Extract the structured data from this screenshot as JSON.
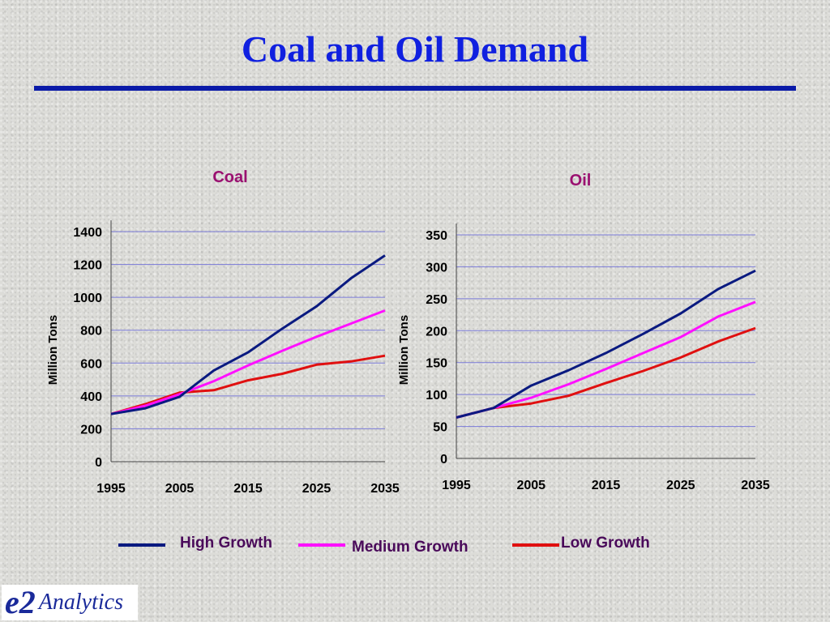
{
  "slide": {
    "title": "Coal and Oil Demand"
  },
  "colors": {
    "high": "#0a1a80",
    "medium": "#ff10ff",
    "low": "#e01010",
    "subtitle": "#9a1070",
    "grid": "#7a7ad8"
  },
  "chart_data": [
    {
      "type": "line",
      "title": "Coal",
      "ylabel": "Million Tons",
      "xlabel": "",
      "ylim": [
        0,
        1400
      ],
      "yticks": [
        0,
        200,
        400,
        600,
        800,
        1000,
        1200,
        1400
      ],
      "xlim": [
        1995,
        2035
      ],
      "xticks": [
        1995,
        2005,
        2015,
        2025,
        2035
      ],
      "x": [
        1995,
        2000,
        2005,
        2010,
        2015,
        2020,
        2025,
        2030,
        2035
      ],
      "series": [
        {
          "name": "High Growth",
          "color_key": "high",
          "values": [
            290,
            325,
            395,
            555,
            665,
            810,
            945,
            1115,
            1255
          ]
        },
        {
          "name": "Medium Growth",
          "color_key": "medium",
          "values": [
            290,
            340,
            410,
            490,
            585,
            675,
            760,
            840,
            920
          ]
        },
        {
          "name": "Low Growth",
          "color_key": "low",
          "values": [
            290,
            350,
            420,
            435,
            495,
            535,
            590,
            610,
            645
          ]
        }
      ],
      "grid": true
    },
    {
      "type": "line",
      "title": "Oil",
      "ylabel": "Million Tons",
      "xlabel": "",
      "ylim": [
        0,
        350
      ],
      "yticks": [
        0,
        50,
        100,
        150,
        200,
        250,
        300,
        350
      ],
      "xlim": [
        1995,
        2035
      ],
      "xticks": [
        1995,
        2005,
        2015,
        2025,
        2035
      ],
      "x": [
        1995,
        2000,
        2005,
        2010,
        2015,
        2020,
        2025,
        2030,
        2035
      ],
      "series": [
        {
          "name": "High Growth",
          "color_key": "high",
          "values": [
            64,
            79,
            114,
            138,
            165,
            195,
            227,
            265,
            294
          ]
        },
        {
          "name": "Medium Growth",
          "color_key": "medium",
          "values": [
            64,
            79,
            95,
            116,
            140,
            165,
            190,
            222,
            245
          ]
        },
        {
          "name": "Low Growth",
          "color_key": "low",
          "values": [
            64,
            79,
            86,
            98,
            118,
            137,
            158,
            183,
            204
          ]
        }
      ],
      "grid": true
    }
  ],
  "legend": {
    "placement": "bottom",
    "items": [
      {
        "label": "High Growth",
        "color_key": "high"
      },
      {
        "label": "Medium Growth",
        "color_key": "medium"
      },
      {
        "label": "Low Growth",
        "color_key": "low"
      }
    ]
  },
  "logo": {
    "mark": "e2",
    "text": "Analytics"
  }
}
